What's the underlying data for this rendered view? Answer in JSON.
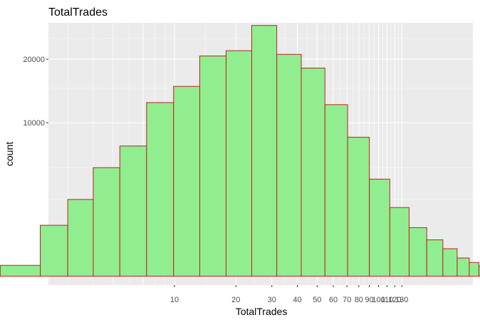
{
  "chart_data": {
    "type": "bar",
    "title": "TotalTrades",
    "xlabel": "TotalTrades",
    "ylabel": "count",
    "x_scale": "log10",
    "y_scale": "sqrt",
    "ylim": [
      0,
      24000
    ],
    "bin_edges": [
      1.4,
      2.2,
      3.0,
      4.0,
      5.4,
      7.3,
      9.9,
      13.3,
      17.9,
      23.9,
      31.7,
      41.8,
      54.6,
      70.5,
      90.1,
      113.5,
      141.1,
      172.2,
      206.5,
      242.6,
      278.1,
      310.1,
      334.5
    ],
    "values": [
      50,
      1100,
      2500,
      5000,
      7200,
      12800,
      15300,
      20600,
      21600,
      26700,
      20900,
      18400,
      12500,
      8200,
      4000,
      2000,
      1000,
      560,
      320,
      140,
      80,
      45
    ],
    "x_ticks": [
      10,
      20,
      30,
      40,
      50,
      60,
      70,
      80,
      90,
      100,
      110,
      120,
      130
    ],
    "y_ticks": [
      10000,
      20000
    ],
    "bar_fill": "#90ee90",
    "bar_stroke": "#c02020",
    "panel_bg": "#ebebeb",
    "grid_color": "#ffffff",
    "legend": "none"
  }
}
